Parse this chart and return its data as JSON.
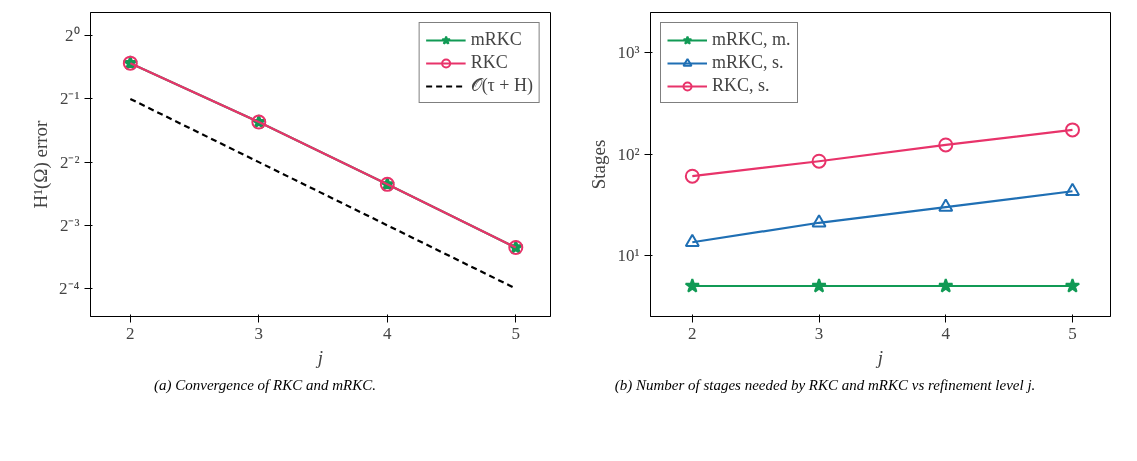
{
  "chart_data": [
    {
      "type": "line",
      "xlabel": "j",
      "ylabel": "H¹(Ω) error",
      "x": [
        2,
        3,
        4,
        5
      ],
      "log": "y",
      "xlim": [
        1.69,
        5.27
      ],
      "ylim": [
        0.046,
        1.29
      ],
      "xticks": [
        2,
        3,
        4,
        5
      ],
      "yticks": [
        {
          "value": 1,
          "label": "2⁰"
        },
        {
          "value": 0.5,
          "label": "2⁻¹"
        },
        {
          "value": 0.25,
          "label": "2⁻²"
        },
        {
          "value": 0.125,
          "label": "2⁻³"
        },
        {
          "value": 0.0625,
          "label": "2⁻⁴"
        }
      ],
      "legend": "top right",
      "grid": false,
      "series": [
        {
          "name": "mRKC",
          "color": "#119a55",
          "marker": "star",
          "line_style": "solid",
          "values": [
            0.74,
            0.388,
            0.196,
            0.098
          ]
        },
        {
          "name": "RKC",
          "color": "#e8336a",
          "marker": "circle",
          "line_style": "solid",
          "values": [
            0.74,
            0.388,
            0.196,
            0.098
          ]
        },
        {
          "name": "𝒪(τ + H)",
          "color": "#000000",
          "marker": "none",
          "line_style": "dashed",
          "values": [
            0.5,
            0.25,
            0.125,
            0.0625
          ]
        }
      ],
      "annotations": [
        "(a) Convergence of RKC and mRKC."
      ]
    },
    {
      "type": "line",
      "xlabel": "j",
      "ylabel": "Stages",
      "x": [
        2,
        3,
        4,
        5
      ],
      "log": "y",
      "xlim": [
        1.67,
        5.3
      ],
      "ylim": [
        2.5,
        2490
      ],
      "xticks": [
        2,
        3,
        4,
        5
      ],
      "yticks": [
        {
          "value": 10,
          "label": "10¹"
        },
        {
          "value": 100,
          "label": "10²"
        },
        {
          "value": 1000,
          "label": "10³"
        }
      ],
      "legend": "top left",
      "grid": false,
      "series": [
        {
          "name": "mRKC, m.",
          "color": "#119a55",
          "marker": "star",
          "line_style": "solid",
          "values": [
            5,
            5,
            5,
            5
          ]
        },
        {
          "name": "mRKC, s.",
          "color": "#1f6fb4",
          "marker": "triangle",
          "line_style": "solid",
          "values": [
            13.5,
            21,
            30,
            43
          ]
        },
        {
          "name": "RKC, s.",
          "color": "#e8336a",
          "marker": "circle",
          "line_style": "solid",
          "values": [
            60.5,
            85,
            123,
            173
          ]
        }
      ],
      "annotations": [
        "(b) Number of stages needed by RKC and mRKC vs refinement level j."
      ]
    }
  ]
}
